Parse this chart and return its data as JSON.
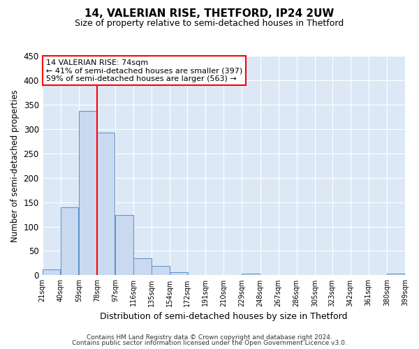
{
  "title": "14, VALERIAN RISE, THETFORD, IP24 2UW",
  "subtitle": "Size of property relative to semi-detached houses in Thetford",
  "xlabel": "Distribution of semi-detached houses by size in Thetford",
  "ylabel": "Number of semi-detached properties",
  "bar_color": "#c9d9f0",
  "bar_edge_color": "#5b8fc9",
  "background_color": "#dce8f5",
  "bins": [
    21,
    40,
    59,
    78,
    97,
    116,
    135,
    154,
    172,
    191,
    210,
    229,
    248,
    267,
    286,
    305,
    323,
    342,
    361,
    380,
    399
  ],
  "counts": [
    12,
    139,
    337,
    293,
    124,
    35,
    19,
    6,
    0,
    0,
    0,
    4,
    0,
    0,
    0,
    0,
    0,
    0,
    0,
    3
  ],
  "annotation_title": "14 VALERIAN RISE: 74sqm",
  "annotation_line1": "← 41% of semi-detached houses are smaller (397)",
  "annotation_line2": "59% of semi-detached houses are larger (563) →",
  "red_line_x": 78,
  "ylim": [
    0,
    450
  ],
  "yticks": [
    0,
    50,
    100,
    150,
    200,
    250,
    300,
    350,
    400,
    450
  ],
  "tick_labels": [
    "21sqm",
    "40sqm",
    "59sqm",
    "78sqm",
    "97sqm",
    "116sqm",
    "135sqm",
    "154sqm",
    "172sqm",
    "191sqm",
    "210sqm",
    "229sqm",
    "248sqm",
    "267sqm",
    "286sqm",
    "305sqm",
    "323sqm",
    "342sqm",
    "361sqm",
    "380sqm",
    "399sqm"
  ],
  "footer_line1": "Contains HM Land Registry data © Crown copyright and database right 2024.",
  "footer_line2": "Contains public sector information licensed under the Open Government Licence v3.0.",
  "figsize": [
    6.0,
    5.0
  ],
  "dpi": 100
}
